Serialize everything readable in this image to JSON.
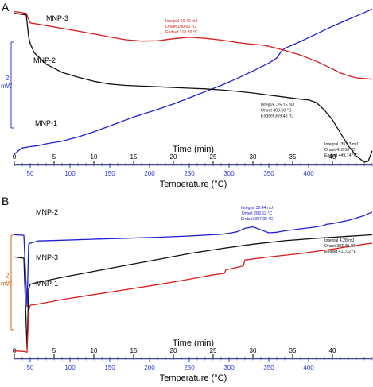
{
  "chart_data": [
    {
      "type": "line",
      "panel_label": "A",
      "xlabel": "Time (min)",
      "x2label": "Temperature (°C)",
      "scale_label": {
        "value": "2",
        "unit": "mW"
      },
      "time_ticks": [
        "0",
        "5",
        "10",
        "15",
        "20",
        "25",
        "30",
        "35",
        "40"
      ],
      "temp_ticks": [
        "50",
        "100",
        "150",
        "200",
        "250",
        "300",
        "350",
        "400"
      ],
      "xlim_time": [
        0,
        45
      ],
      "series": [
        {
          "name": "MNP-1",
          "color": "#1f1fd6",
          "x": [
            0,
            0.5,
            1,
            2,
            3,
            4,
            6,
            8,
            10,
            12,
            15,
            18,
            20,
            22,
            24,
            26,
            28,
            30,
            32,
            33,
            33.6,
            34,
            36,
            38,
            40,
            42,
            44,
            45
          ],
          "y": [
            -3.1,
            -3.0,
            -2.92,
            -2.88,
            -2.85,
            -2.8,
            -2.72,
            -2.6,
            -2.45,
            -2.28,
            -2.02,
            -1.8,
            -1.64,
            -1.46,
            -1.28,
            -1.1,
            -0.9,
            -0.68,
            -0.45,
            -0.3,
            -0.1,
            -0.02,
            0.18,
            0.4,
            0.62,
            0.82,
            1.02,
            1.12
          ]
        },
        {
          "name": "MNP-2",
          "color": "#d91c1c",
          "x": [
            0,
            1.5,
            1.8,
            2,
            4,
            6,
            8,
            10,
            12,
            14,
            16,
            18,
            20,
            22,
            24,
            26,
            28,
            29,
            30,
            31,
            32,
            34,
            36,
            38,
            40,
            41,
            42,
            43,
            44,
            45
          ],
          "y": [
            1.05,
            1.0,
            0.82,
            0.72,
            0.64,
            0.56,
            0.48,
            0.4,
            0.31,
            0.23,
            0.19,
            0.2,
            0.26,
            0.3,
            0.27,
            0.22,
            0.15,
            0.12,
            0.1,
            0.08,
            0.04,
            -0.08,
            -0.22,
            -0.4,
            -0.62,
            -0.74,
            -0.82,
            -0.88,
            -0.9,
            -0.92
          ]
        },
        {
          "name": "MNP-3",
          "color": "#111111",
          "x": [
            0,
            1.5,
            1.8,
            2,
            2.5,
            4,
            6,
            8,
            10,
            12,
            14,
            16,
            18,
            20,
            22,
            24,
            26,
            28,
            30,
            32,
            34,
            36,
            37,
            38,
            39,
            40,
            41,
            42,
            43,
            44,
            44.5,
            45
          ],
          "y": [
            1.0,
            0.95,
            0.32,
            0.12,
            -0.15,
            -0.48,
            -0.72,
            -0.86,
            -0.98,
            -1.06,
            -1.1,
            -1.12,
            -1.14,
            -1.16,
            -1.18,
            -1.2,
            -1.23,
            -1.27,
            -1.32,
            -1.38,
            -1.44,
            -1.5,
            -1.52,
            -1.6,
            -1.82,
            -2.1,
            -2.48,
            -2.86,
            -3.15,
            -3.33,
            -3.3,
            -3.0
          ]
        }
      ],
      "annotations": [
        {
          "color": "#d91c1c",
          "align": "start",
          "anchor": [
            19,
            0.74
          ],
          "lines": [
            "Integral 40.40 mJ",
            "Onset 190.63 °C",
            "Endset 218.89 °C"
          ]
        },
        {
          "color": "#111111",
          "align": "start",
          "anchor": [
            31,
            -1.7
          ],
          "lines": [
            "Integral -25.15 mJ",
            "Onset 308.50 °C",
            "Endset 369.48 °C"
          ]
        },
        {
          "color": "#111111",
          "align": "start",
          "anchor": [
            39,
            -2.85
          ],
          "lines": [
            "Integral -35.13 mJ",
            "Onset 410.56 °C",
            "Endset 449.74 °C"
          ]
        }
      ]
    },
    {
      "type": "line",
      "panel_label": "B",
      "xlabel": "Time (min)",
      "x2label": "Temperature (°C)",
      "scale_label": {
        "value": "2",
        "unit": "mW"
      },
      "time_ticks": [
        "0",
        "5",
        "10",
        "15",
        "20",
        "25",
        "30",
        "35",
        "40"
      ],
      "temp_ticks": [
        "50",
        "100",
        "150",
        "200",
        "250",
        "300",
        "350",
        "400"
      ],
      "xlim_time": [
        0,
        45
      ],
      "series": [
        {
          "name": "MNP-2",
          "color": "#1f1fd6",
          "x": [
            0,
            1.2,
            1.6,
            1.8,
            2,
            3,
            6,
            10,
            14,
            18,
            22,
            26,
            27,
            28,
            29,
            30,
            31,
            32,
            33,
            34,
            36,
            38,
            39,
            39.2,
            40,
            42,
            44,
            45
          ],
          "y": [
            1.0,
            0.98,
            -1.9,
            0.6,
            0.66,
            0.75,
            0.78,
            0.82,
            0.86,
            0.9,
            0.95,
            1.02,
            1.06,
            1.12,
            1.26,
            1.32,
            1.2,
            1.08,
            1.1,
            1.16,
            1.24,
            1.32,
            1.38,
            1.42,
            1.45,
            1.58,
            1.78,
            1.92
          ]
        },
        {
          "name": "MNP-3",
          "color": "#111111",
          "x": [
            0,
            1.2,
            1.6,
            1.8,
            2,
            3,
            6,
            10,
            14,
            18,
            22,
            26,
            30,
            34,
            38,
            40,
            42,
            44,
            45
          ],
          "y": [
            0.1,
            0.05,
            -3.6,
            -1.2,
            -1.0,
            -0.92,
            -0.72,
            -0.48,
            -0.24,
            0,
            0.24,
            0.44,
            0.62,
            0.76,
            0.86,
            0.9,
            0.94,
            0.98,
            1.0
          ]
        },
        {
          "name": "MNP-1",
          "color": "#d91c1c",
          "x": [
            0,
            1.2,
            1.6,
            1.8,
            2,
            3,
            6,
            10,
            14,
            18,
            22,
            25,
            26.4,
            26.6,
            28,
            28.8,
            29,
            32,
            36,
            40,
            42,
            44,
            45
          ],
          "y": [
            -3.7,
            -3.72,
            -3.75,
            -2.1,
            -1.85,
            -1.8,
            -1.62,
            -1.42,
            -1.22,
            -1.02,
            -0.8,
            -0.62,
            -0.56,
            -0.42,
            -0.32,
            -0.26,
            -0.02,
            0.1,
            0.24,
            0.42,
            0.52,
            0.62,
            0.66
          ]
        }
      ],
      "annotations": [
        {
          "color": "#1f1fd6",
          "align": "middle",
          "anchor": [
            30.5,
            2.05
          ],
          "lines": [
            "Integral 38.44 mJ",
            "Onset 268.62 °C",
            "Endset 307.30 °C"
          ]
        },
        {
          "color": "#111111",
          "align": "start",
          "anchor": [
            39,
            0.72
          ],
          "lines": [
            "Integral 4.28 mJ",
            "Onset 393.40 °C",
            "Endset 411.02 °C"
          ]
        }
      ]
    }
  ]
}
